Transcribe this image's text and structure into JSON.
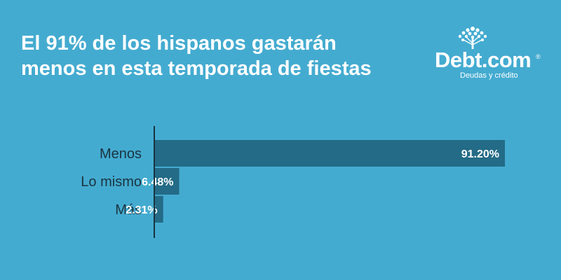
{
  "header": {
    "title_line1": "El 91% de los hispanos gastarán",
    "title_line2": "menos en esta temporada de fiestas"
  },
  "logo": {
    "name": "Debt.com",
    "registered": "®",
    "tagline": "Deudas y crédito",
    "icon": "tree-icon"
  },
  "colors": {
    "background": "#44abd0",
    "bar": "#236b86",
    "axis": "#1a3440",
    "label_text": "#1a3440",
    "value_text": "#ffffff"
  },
  "chart_data": {
    "type": "bar",
    "orientation": "horizontal",
    "categories": [
      "Menos",
      "Lo mismo",
      "Más"
    ],
    "values": [
      91.2,
      6.48,
      2.31
    ],
    "value_labels": [
      "91.20%",
      "6.48%",
      "2.31%"
    ],
    "xlim": [
      0,
      91.2
    ],
    "grid": false,
    "legend": "none"
  }
}
